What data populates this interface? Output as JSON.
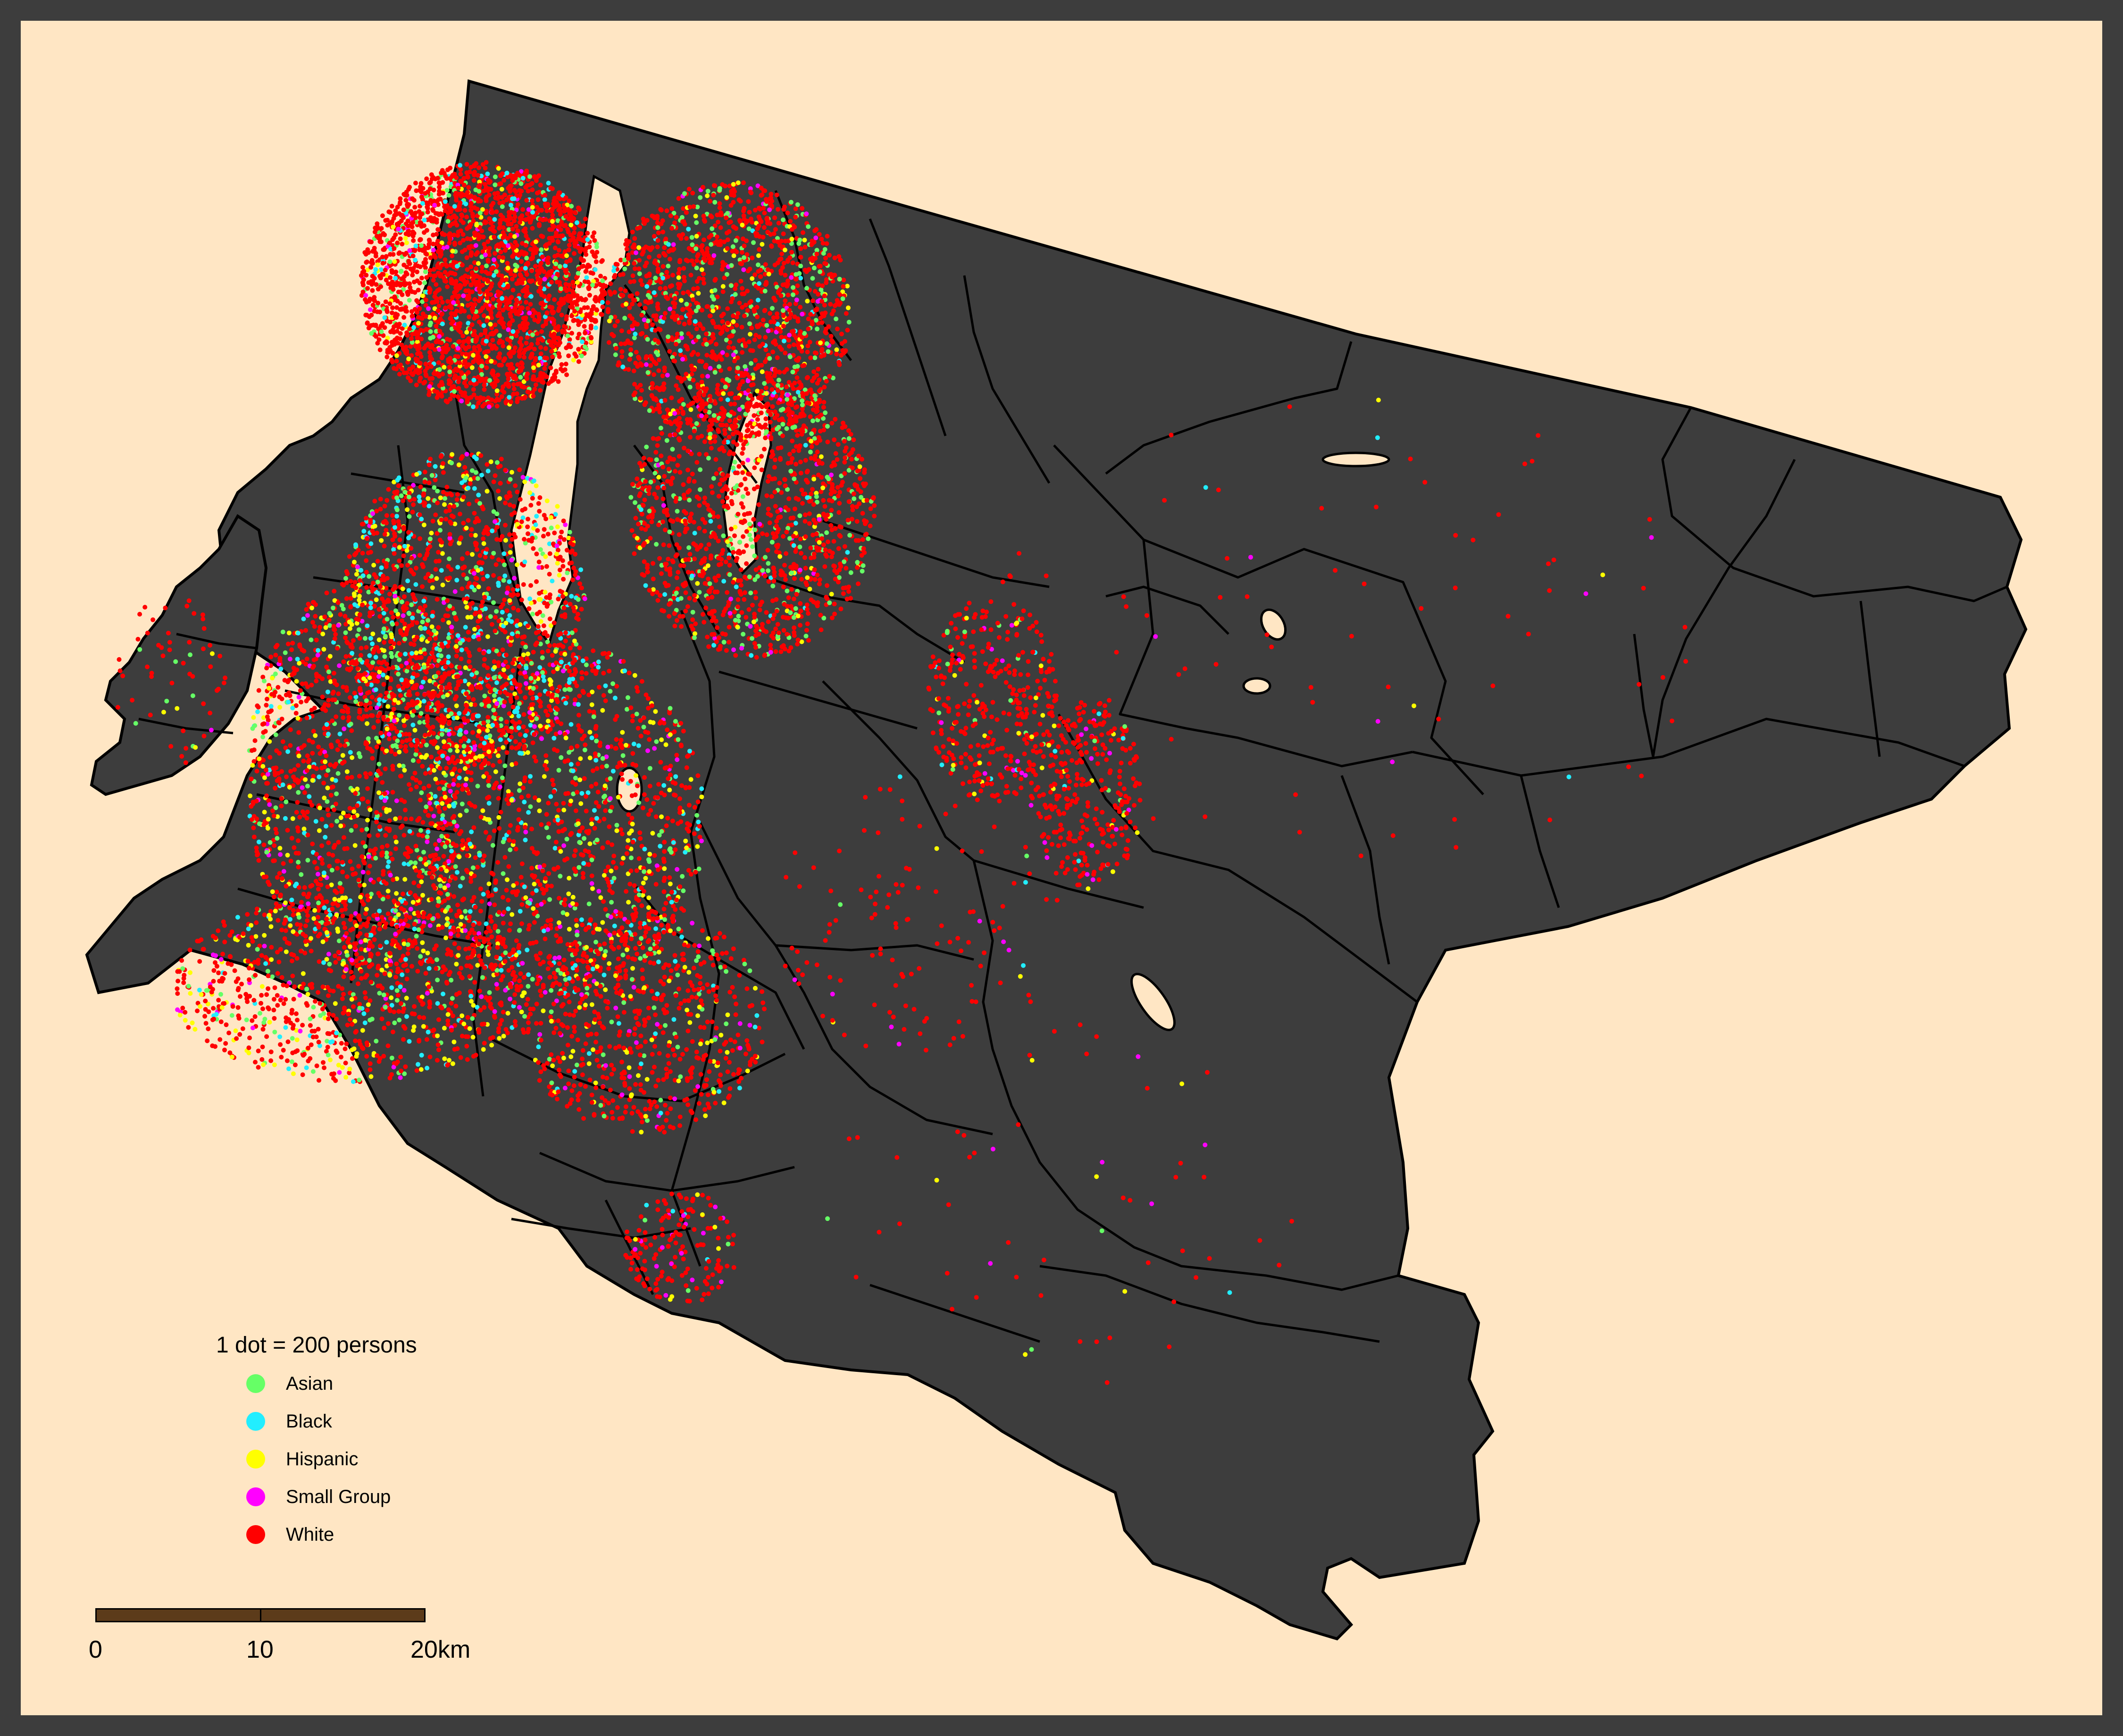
{
  "legend": {
    "title": "1 dot = 200 persons",
    "items": [
      {
        "label": "Asian",
        "color": "#66ff66",
        "icon": "dot-icon"
      },
      {
        "label": "Black",
        "color": "#22eeff",
        "icon": "dot-icon"
      },
      {
        "label": "Hispanic",
        "color": "#ffff00",
        "icon": "dot-icon"
      },
      {
        "label": "Small Group",
        "color": "#ff00ff",
        "icon": "dot-icon"
      },
      {
        "label": "White",
        "color": "#ff0000",
        "icon": "dot-icon"
      }
    ]
  },
  "scale_bar": {
    "labels": [
      "0",
      "10",
      "20km"
    ]
  },
  "colors": {
    "frame": "#3d3d3d",
    "background": "#ffe6c4",
    "land": "#3d3d3d",
    "boundary": "#000000",
    "scale_bar_fill": "#5c3b1a"
  }
}
